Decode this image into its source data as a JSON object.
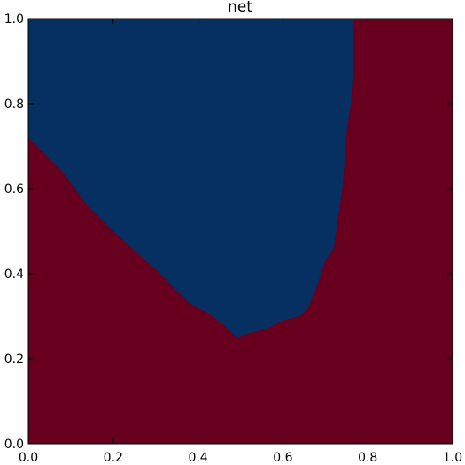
{
  "chart_data": {
    "type": "heatmap",
    "title": "net",
    "xlabel": "",
    "ylabel": "",
    "xlim": [
      0.0,
      1.0
    ],
    "ylim": [
      0.0,
      1.0
    ],
    "x_ticks": [
      "0.0",
      "0.2",
      "0.4",
      "0.6",
      "0.8",
      "1.0"
    ],
    "y_ticks": [
      "0.0",
      "0.2",
      "0.4",
      "0.6",
      "0.8",
      "1.0"
    ],
    "grid": false,
    "colors": {
      "class_a": "#67001f",
      "class_b": "#053061"
    },
    "class_b_region_boundary": [
      [
        0.0,
        1.0
      ],
      [
        0.0,
        0.72
      ],
      [
        0.04,
        0.68
      ],
      [
        0.08,
        0.64
      ],
      [
        0.14,
        0.56
      ],
      [
        0.2,
        0.5
      ],
      [
        0.3,
        0.41
      ],
      [
        0.38,
        0.33
      ],
      [
        0.42,
        0.31
      ],
      [
        0.46,
        0.28
      ],
      [
        0.49,
        0.25
      ],
      [
        0.52,
        0.26
      ],
      [
        0.56,
        0.27
      ],
      [
        0.6,
        0.29
      ],
      [
        0.64,
        0.3
      ],
      [
        0.66,
        0.32
      ],
      [
        0.68,
        0.37
      ],
      [
        0.7,
        0.43
      ],
      [
        0.72,
        0.46
      ],
      [
        0.73,
        0.53
      ],
      [
        0.74,
        0.6
      ],
      [
        0.745,
        0.66
      ],
      [
        0.75,
        0.73
      ],
      [
        0.76,
        0.8
      ],
      [
        0.765,
        0.87
      ],
      [
        0.765,
        0.95
      ],
      [
        0.765,
        1.0
      ]
    ]
  }
}
